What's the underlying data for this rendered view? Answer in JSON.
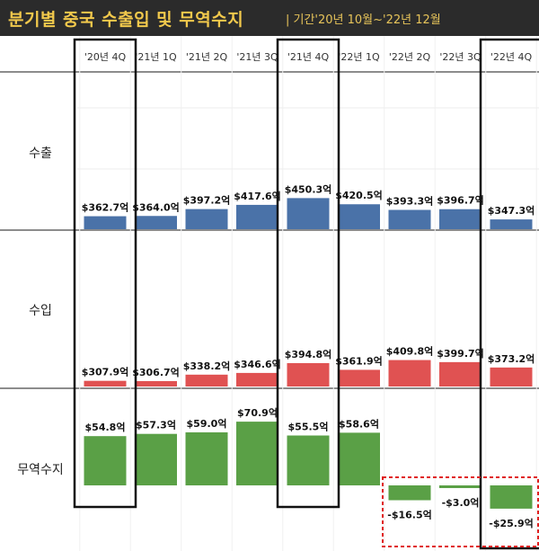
{
  "header": {
    "title": "분기별 중국 수출입 및 무역수지",
    "subtitle": "| 기간'20년 10월~'22년 12월"
  },
  "chart_data": {
    "type": "bar",
    "categories": [
      "'20년 4Q",
      "'21년 1Q",
      "'21년 2Q",
      "'21년 3Q",
      "'21년 4Q",
      "'22년 1Q",
      "'22년 2Q",
      "'22년 3Q",
      "'22년 4Q"
    ],
    "panels": [
      {
        "name": "수출",
        "color": "#4a72a8",
        "values": [
          362.7,
          364.0,
          397.2,
          417.6,
          450.3,
          420.5,
          393.3,
          396.7,
          347.3
        ],
        "labels": [
          "$362.7억",
          "$364.0억",
          "$397.2억",
          "$417.6억",
          "$450.3억",
          "$420.5억",
          "$393.3억",
          "$396.7억",
          "$347.3억"
        ]
      },
      {
        "name": "수입",
        "color": "#e05252",
        "values": [
          307.9,
          306.7,
          338.2,
          346.6,
          394.8,
          361.9,
          409.8,
          399.7,
          373.2
        ],
        "labels": [
          "$307.9억",
          "$306.7억",
          "$338.2억",
          "$346.6억",
          "$394.8억",
          "$361.9억",
          "$409.8억",
          "$399.7억",
          "$373.2억"
        ]
      },
      {
        "name": "무역수지",
        "color": "#5aa046",
        "values": [
          54.8,
          57.3,
          59.0,
          70.9,
          55.5,
          58.6,
          -16.5,
          -3.0,
          -25.9
        ],
        "labels": [
          "$54.8억",
          "$57.3억",
          "$59.0억",
          "$70.9억",
          "$55.5억",
          "$58.6억",
          "-$16.5억",
          "-$3.0억",
          "-$25.9억"
        ]
      }
    ],
    "highlighted_categories": [
      "'20년 4Q",
      "'21년 4Q",
      "'22년 4Q"
    ],
    "highlighted_negative_balance": [
      "'22년 2Q",
      "'22년 3Q",
      "'22년 4Q"
    ],
    "grid": true
  }
}
